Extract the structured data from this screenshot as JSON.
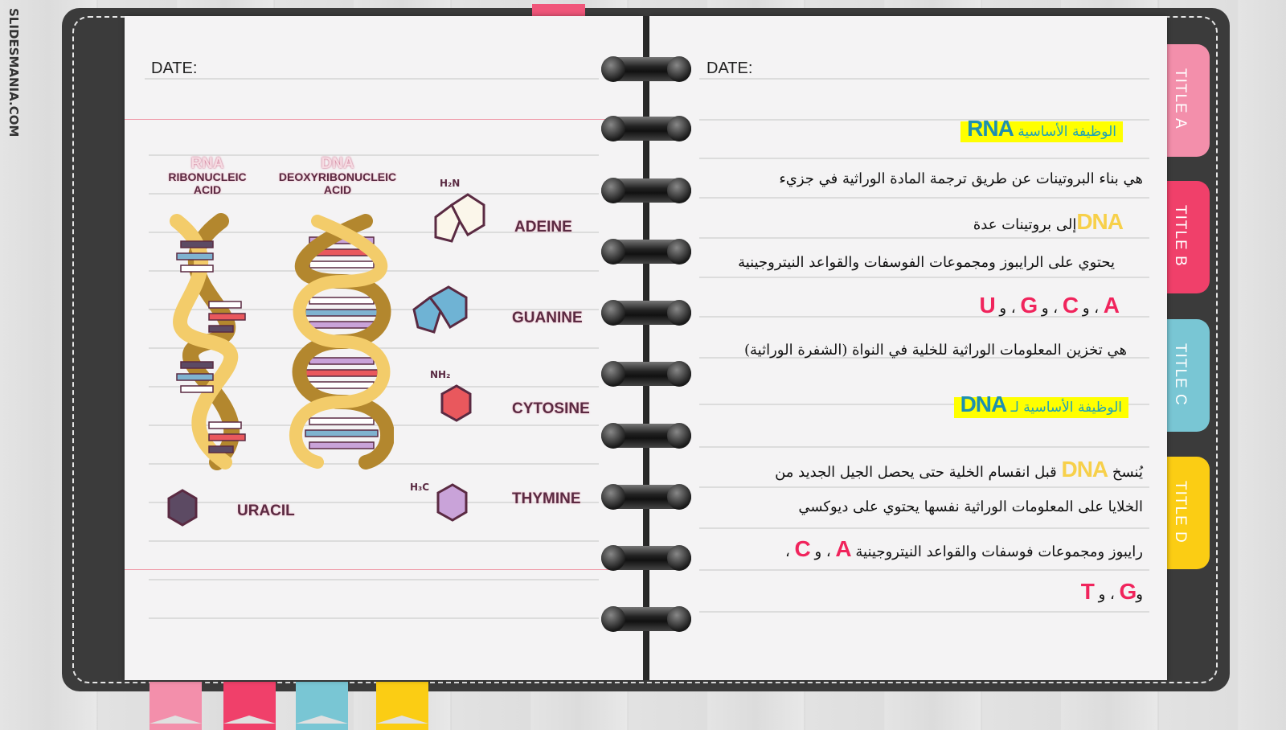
{
  "watermark": "SLIDESMANIA.COM",
  "left_page": {
    "date_label": "DATE:",
    "rna": {
      "title": "RNA",
      "subtitle1": "RIBONUCLEIC",
      "subtitle2": "ACID"
    },
    "dna": {
      "title": "DNA",
      "subtitle1": "DEOXYRIBONUCLEIC",
      "subtitle2": "ACID"
    },
    "bases": [
      {
        "name": "ADEINE",
        "color": "#fbf6ea"
      },
      {
        "name": "GUANINE",
        "color": "#6fb3d4"
      },
      {
        "name": "CYTOSINE",
        "color": "#e9585d"
      },
      {
        "name": "THYMINE",
        "color": "#c9a3d9"
      },
      {
        "name": "URACIL",
        "color": "#5c4a63"
      }
    ]
  },
  "right_page": {
    "date_label": "DATE:",
    "rna_heading": {
      "text": "الوظيفة الأساسية",
      "abbr": "RNA"
    },
    "rna_line1": "هي بناء البروتينات عن طريق ترجمة المادة الوراثية في جزيء",
    "rna_line2": {
      "abbr": "DNA",
      "text": "إلى بروتينات عدة"
    },
    "rna_line3": "يحتوي على الرايبوز ومجموعات الفوسفات والقواعد النيتروجينية",
    "rna_bases": {
      "b1": "A",
      "s1": " ، و",
      "b2": "C",
      "s2": " ، و",
      "b3": "G",
      "s3": " ، و",
      "b4": "U"
    },
    "dna_line0": "هي تخزين المعلومات الوراثية للخلية في النواة (الشفرة الوراثية)",
    "dna_heading": {
      "text": "الوظيفة الأساسية لـ",
      "abbr": "DNA"
    },
    "dna_line1": {
      "pre": "يُنسخ",
      "abbr": "DNA",
      "text": "قبل انقسام الخلية حتى يحصل الجيل الجديد من"
    },
    "dna_line2": "الخلايا على المعلومات الوراثية نفسها  يحتوي على ديوكسي",
    "dna_line3": {
      "text": "رايبوز ومجموعات فوسفات والقواعد النيتروجينية",
      "b1": "A",
      "s1": " ، و",
      "b2": "C",
      "s2": " ،"
    },
    "dna_line4": {
      "pre": "و",
      "b1": "G",
      "s1": " ، و",
      "b2": "T"
    }
  },
  "tabs": [
    {
      "label": "TITLE A",
      "color": "#f38fab"
    },
    {
      "label": "TITLE B",
      "color": "#f0406a"
    },
    {
      "label": "TITLE C",
      "color": "#79c6d4"
    },
    {
      "label": "TITLE D",
      "color": "#fbcd14"
    }
  ],
  "colors": {
    "cover": "#3b3b3b",
    "page": "#f4f3f4",
    "highlight": "#ffff00",
    "accent_red": "#f0245c",
    "accent_gold": "#f7d04a",
    "accent_teal": "#1d8fb0"
  }
}
